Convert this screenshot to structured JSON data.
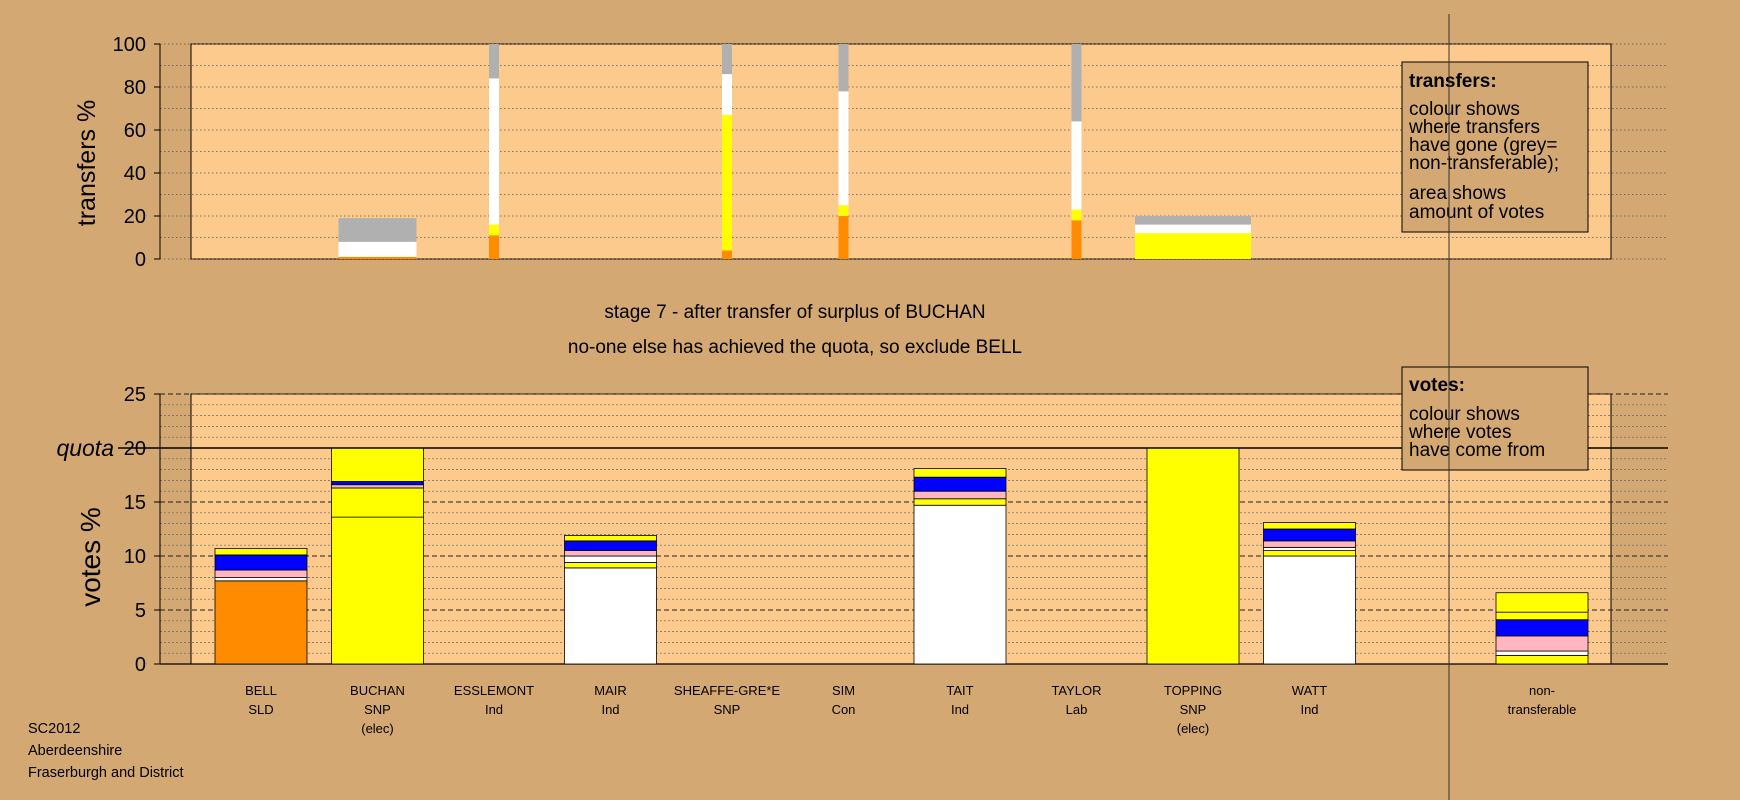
{
  "footer": {
    "line1": "SC2012",
    "line2": "Aberdeenshire",
    "line3": "Fraserburgh and District"
  },
  "headings": {
    "stage": "stage 7 - after transfer of surplus of BUCHAN",
    "action": "no-one else has achieved the quota, so exclude BELL"
  },
  "legend_transfers": {
    "title": "transfers:",
    "lines": [
      "colour shows",
      "where transfers",
      "have gone (grey=",
      "non-transferable);"
    ],
    "lines2": [
      "area shows",
      "amount of votes"
    ]
  },
  "legend_votes": {
    "title": "votes:",
    "lines": [
      "colour shows",
      "where votes",
      "have come from"
    ]
  },
  "colors": {
    "background": "#d4a872",
    "panel": "#fdca8d",
    "orange": "#ff8c00",
    "yellow": "#ffff00",
    "white": "#ffffff",
    "blue": "#0000ff",
    "pink": "#ffb6c1",
    "grey": "#b0b0b0",
    "navy": "#000080"
  },
  "chart_data": [
    {
      "type": "bar",
      "stacked": true,
      "ylabel": "transfers %",
      "ylim": [
        0,
        100
      ],
      "yticks": [
        0,
        20,
        40,
        60,
        80,
        100
      ],
      "grid": true,
      "bars": [
        {
          "position": 2,
          "width": "wide",
          "segments": [
            {
              "color": "orange",
              "value": 1
            },
            {
              "color": "white",
              "value": 7
            },
            {
              "color": "grey",
              "value": 11
            }
          ]
        },
        {
          "position": 3,
          "width": "narrow",
          "segments": [
            {
              "color": "orange",
              "value": 11
            },
            {
              "color": "yellow",
              "value": 5
            },
            {
              "color": "white",
              "value": 68
            },
            {
              "color": "grey",
              "value": 16
            }
          ]
        },
        {
          "position": 5,
          "width": "narrow",
          "segments": [
            {
              "color": "orange",
              "value": 4
            },
            {
              "color": "yellow",
              "value": 63
            },
            {
              "color": "white",
              "value": 19
            },
            {
              "color": "grey",
              "value": 14
            }
          ]
        },
        {
          "position": 6,
          "width": "narrow",
          "segments": [
            {
              "color": "orange",
              "value": 20
            },
            {
              "color": "yellow",
              "value": 5
            },
            {
              "color": "white",
              "value": 53
            },
            {
              "color": "grey",
              "value": 22
            }
          ]
        },
        {
          "position": 8,
          "width": "narrow",
          "segments": [
            {
              "color": "orange",
              "value": 18
            },
            {
              "color": "yellow",
              "value": 5
            },
            {
              "color": "white",
              "value": 41
            },
            {
              "color": "grey",
              "value": 36
            }
          ]
        },
        {
          "position": 9,
          "width": "wide",
          "segments": [
            {
              "color": "yellow",
              "value": 12
            },
            {
              "color": "white",
              "value": 4
            },
            {
              "color": "grey",
              "value": 4
            }
          ]
        }
      ]
    },
    {
      "type": "bar",
      "stacked": true,
      "ylabel": "votes %",
      "ylim": [
        0,
        25
      ],
      "yticks": [
        0,
        5,
        10,
        15,
        20,
        25
      ],
      "quota_label": "quota",
      "quota": 20,
      "categories": [
        {
          "name": "BELL",
          "party": "SLD",
          "note": ""
        },
        {
          "name": "BUCHAN",
          "party": "SNP",
          "note": "(elec)"
        },
        {
          "name": "ESSLEMONT",
          "party": "Ind",
          "note": ""
        },
        {
          "name": "MAIR",
          "party": "Ind",
          "note": ""
        },
        {
          "name": "SHEAFFE-GRE*E",
          "party": "SNP",
          "note": ""
        },
        {
          "name": "SIM",
          "party": "Con",
          "note": ""
        },
        {
          "name": "TAIT",
          "party": "Ind",
          "note": ""
        },
        {
          "name": "TAYLOR",
          "party": "Lab",
          "note": ""
        },
        {
          "name": "TOPPING",
          "party": "SNP",
          "note": "(elec)"
        },
        {
          "name": "WATT",
          "party": "Ind",
          "note": ""
        }
      ],
      "extra_category": {
        "name": "non-",
        "party": "transferable",
        "note": ""
      },
      "series": [
        {
          "category": "BELL",
          "segments": [
            {
              "color": "orange",
              "value": 7.7
            },
            {
              "color": "white",
              "value": 0.3
            },
            {
              "color": "pink",
              "value": 0.7
            },
            {
              "color": "blue",
              "value": 1.4
            },
            {
              "color": "yellow",
              "value": 0.6
            }
          ]
        },
        {
          "category": "BUCHAN",
          "segments": [
            {
              "color": "yellow",
              "value": 13.6
            },
            {
              "color": "yellow",
              "value": 2.7
            },
            {
              "color": "pink",
              "value": 0.3
            },
            {
              "color": "blue",
              "value": 0.3
            },
            {
              "color": "yellow",
              "value": 3.1
            }
          ]
        },
        {
          "category": "ESSLEMONT",
          "segments": []
        },
        {
          "category": "MAIR",
          "segments": [
            {
              "color": "white",
              "value": 8.9
            },
            {
              "color": "yellow",
              "value": 0.5
            },
            {
              "color": "white",
              "value": 0.6
            },
            {
              "color": "pink",
              "value": 0.5
            },
            {
              "color": "blue",
              "value": 0.9
            },
            {
              "color": "yellow",
              "value": 0.5
            }
          ]
        },
        {
          "category": "SHEAFFE-GRE*E",
          "segments": []
        },
        {
          "category": "SIM",
          "segments": []
        },
        {
          "category": "TAIT",
          "segments": [
            {
              "color": "white",
              "value": 14.7
            },
            {
              "color": "yellow",
              "value": 0.6
            },
            {
              "color": "pink",
              "value": 0.7
            },
            {
              "color": "blue",
              "value": 1.3
            },
            {
              "color": "yellow",
              "value": 0.8
            }
          ]
        },
        {
          "category": "TAYLOR",
          "segments": []
        },
        {
          "category": "TOPPING",
          "segments": [
            {
              "color": "yellow",
              "value": 20
            }
          ]
        },
        {
          "category": "WATT",
          "segments": [
            {
              "color": "white",
              "value": 10.0
            },
            {
              "color": "yellow",
              "value": 0.5
            },
            {
              "color": "white",
              "value": 0.3
            },
            {
              "color": "pink",
              "value": 0.6
            },
            {
              "color": "blue",
              "value": 1.1
            },
            {
              "color": "yellow",
              "value": 0.6
            }
          ]
        },
        {
          "category": "non-transferable",
          "segments": [
            {
              "color": "yellow",
              "value": 0.8
            },
            {
              "color": "white",
              "value": 0.4
            },
            {
              "color": "pink",
              "value": 1.4
            },
            {
              "color": "blue",
              "value": 1.5
            },
            {
              "color": "yellow",
              "value": 0.7
            },
            {
              "color": "yellow",
              "value": 1.8
            }
          ]
        }
      ]
    }
  ]
}
